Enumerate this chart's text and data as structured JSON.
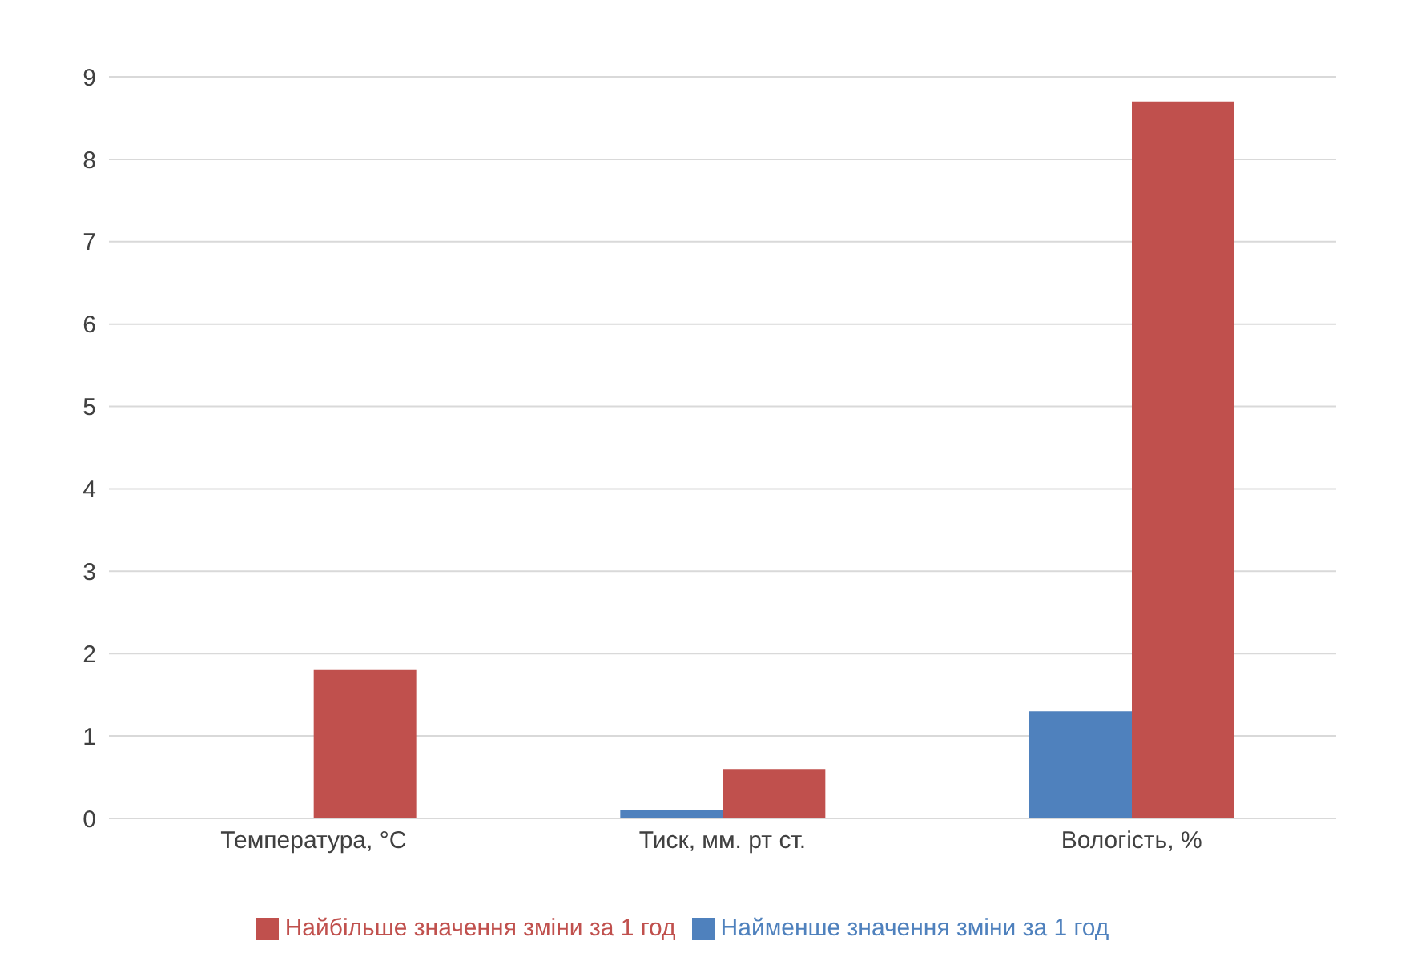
{
  "chart_data": {
    "type": "bar",
    "categories": [
      "Температура, °C",
      "Тиск, мм. рт ст.",
      "Вологість, %"
    ],
    "series": [
      {
        "name": "Найменше значення зміни за 1 год",
        "color": "#4f81bd",
        "values": [
          0,
          0.1,
          1.3
        ]
      },
      {
        "name": "Найбільше значення зміни за 1 год",
        "color": "#c0504d",
        "values": [
          1.8,
          0.6,
          8.7
        ]
      }
    ],
    "ylim": [
      0,
      9
    ],
    "yticks": [
      0,
      1,
      2,
      3,
      4,
      5,
      6,
      7,
      8,
      9
    ],
    "grid": "y",
    "legend": "bottom"
  }
}
